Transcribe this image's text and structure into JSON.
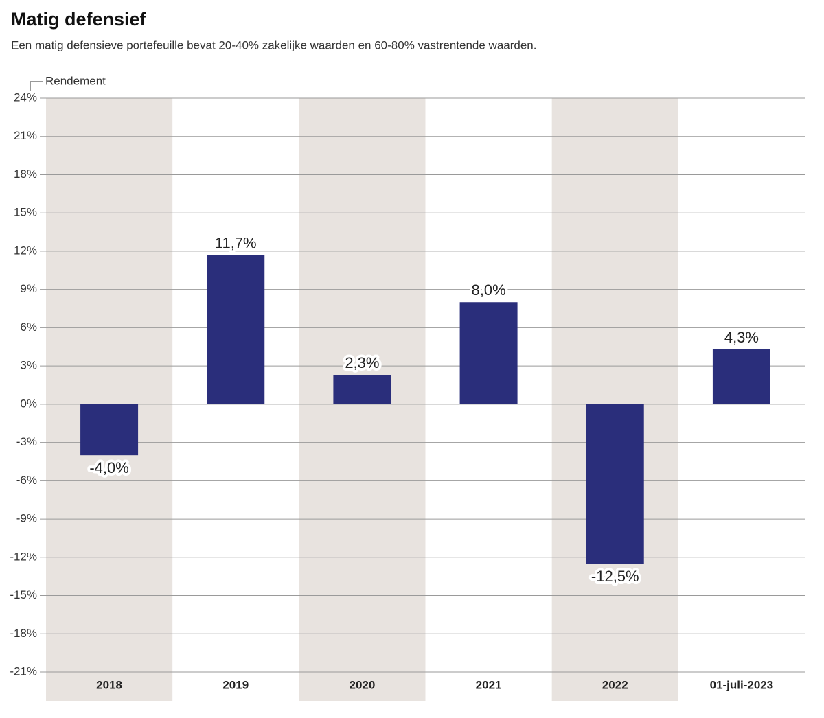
{
  "chart_data": {
    "type": "bar",
    "title": "Matig defensief",
    "subtitle": "Een matig defensieve portefeuille bevat 20-40% zakelijke waarden en 60-80% vastrentende waarden.",
    "y_label": "Rendement",
    "categories": [
      "2018",
      "2019",
      "2020",
      "2021",
      "2022",
      "01-juli-2023"
    ],
    "values": [
      -4.0,
      11.7,
      2.3,
      8.0,
      -12.5,
      4.3
    ],
    "value_labels": [
      "-4,0%",
      "11,7%",
      "2,3%",
      "8,0%",
      "-12,5%",
      "4,3%"
    ],
    "color": "#2a2e7b",
    "ylim": [
      -21,
      24
    ],
    "yticks": [
      {
        "value": 24,
        "label": "24%"
      },
      {
        "value": 21,
        "label": "21%"
      },
      {
        "value": 18,
        "label": "18%"
      },
      {
        "value": 15,
        "label": "15%"
      },
      {
        "value": 12,
        "label": "12%"
      },
      {
        "value": 9,
        "label": "9%"
      },
      {
        "value": 6,
        "label": "6%"
      },
      {
        "value": 3,
        "label": "3%"
      },
      {
        "value": 0,
        "label": "0%"
      },
      {
        "value": -3,
        "label": "-3%"
      },
      {
        "value": -6,
        "label": "-6%"
      },
      {
        "value": -9,
        "label": "-9%"
      },
      {
        "value": -12,
        "label": "-12%"
      },
      {
        "value": -15,
        "label": "-15%"
      },
      {
        "value": -18,
        "label": "-18%"
      },
      {
        "value": -21,
        "label": "-21%"
      }
    ],
    "grid": true
  }
}
